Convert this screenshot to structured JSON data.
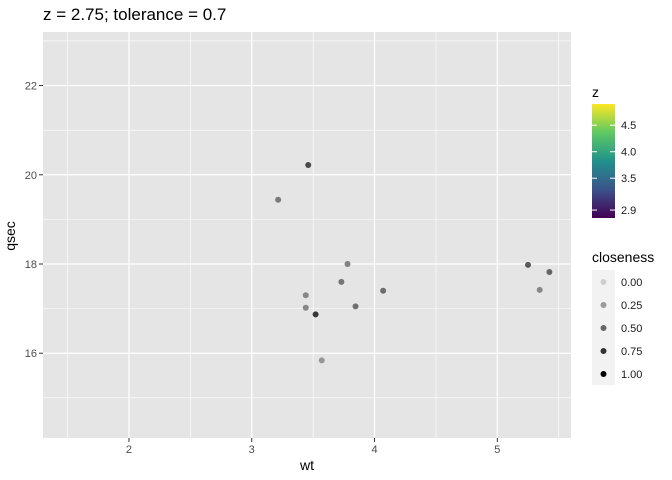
{
  "chart_data": {
    "type": "scatter",
    "title": "z = 2.75; tolerance = 0.7",
    "xlabel": "wt",
    "ylabel": "qsec",
    "xlim": [
      1.3,
      5.6
    ],
    "ylim": [
      14.1,
      23.2
    ],
    "x_ticks": [
      2,
      3,
      4,
      5
    ],
    "y_ticks": [
      16,
      18,
      20,
      22
    ],
    "grid": true,
    "panel_background": "#e5e5e5",
    "grid_color": "#ffffff",
    "point_color": "#000000",
    "points": [
      {
        "x": 3.46,
        "y": 20.22,
        "closeness": 0.62
      },
      {
        "x": 3.215,
        "y": 19.44,
        "closeness": 0.38
      },
      {
        "x": 3.44,
        "y": 17.02,
        "closeness": 0.32
      },
      {
        "x": 3.44,
        "y": 17.3,
        "closeness": 0.3
      },
      {
        "x": 3.52,
        "y": 16.87,
        "closeness": 0.72
      },
      {
        "x": 3.57,
        "y": 15.84,
        "closeness": 0.22
      },
      {
        "x": 3.73,
        "y": 17.6,
        "closeness": 0.4
      },
      {
        "x": 3.78,
        "y": 18.0,
        "closeness": 0.35
      },
      {
        "x": 3.845,
        "y": 17.05,
        "closeness": 0.42
      },
      {
        "x": 4.07,
        "y": 17.4,
        "closeness": 0.45
      },
      {
        "x": 5.25,
        "y": 17.98,
        "closeness": 0.55
      },
      {
        "x": 5.345,
        "y": 17.42,
        "closeness": 0.3
      },
      {
        "x": 5.424,
        "y": 17.82,
        "closeness": 0.48
      }
    ],
    "legend_z": {
      "title": "z",
      "placement": "right",
      "range": [
        2.75,
        4.9
      ],
      "ticks": [
        "2.9",
        "3.5",
        "4.0",
        "4.5"
      ],
      "tick_values": [
        2.9,
        3.5,
        4.0,
        4.5
      ],
      "colors": [
        "#440154",
        "#3b528b",
        "#21918c",
        "#5ec962",
        "#fde725"
      ]
    },
    "legend_closeness": {
      "title": "closeness",
      "placement": "right",
      "labels": [
        "0.00",
        "0.25",
        "0.50",
        "0.75",
        "1.00"
      ],
      "values": [
        0.0,
        0.25,
        0.5,
        0.75,
        1.0
      ]
    }
  }
}
